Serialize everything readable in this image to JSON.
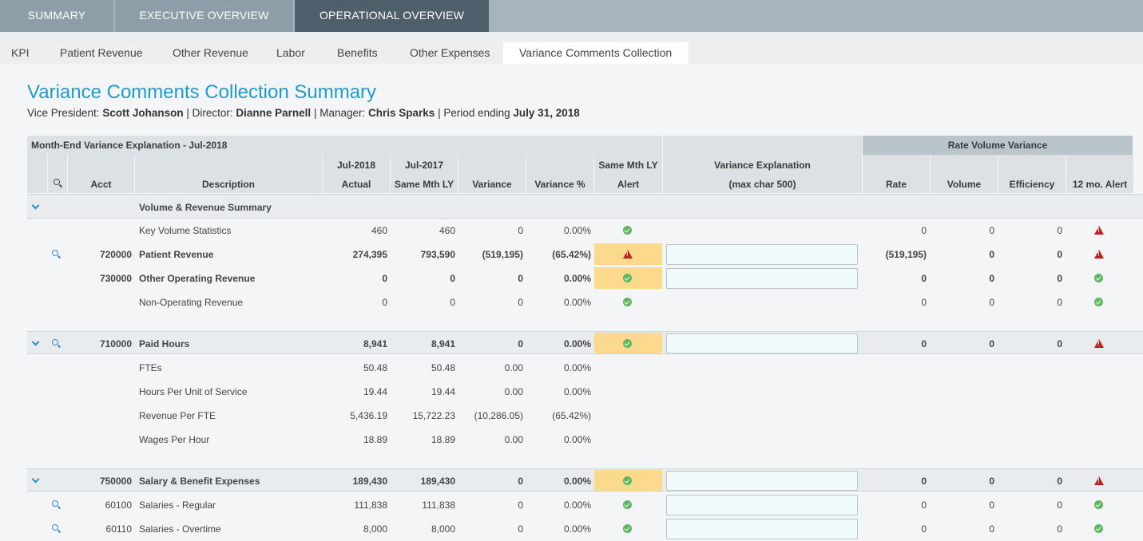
{
  "top_tabs": [
    "SUMMARY",
    "EXECUTIVE OVERVIEW",
    "OPERATIONAL OVERVIEW"
  ],
  "sub_tabs": [
    "KPI",
    "Patient Revenue",
    "Other Revenue",
    "Labor",
    "Benefits",
    "Other Expenses",
    "Variance Comments Collection"
  ],
  "page": {
    "title": "Variance Comments Collection Summary",
    "vp_label": "Vice President:",
    "vp": "Scott Johanson",
    "director_label": "Director:",
    "director": "Dianne Parnell",
    "manager_label": "Manager:",
    "manager": "Chris Sparks",
    "period_label": "Period ending",
    "period": "July 31, 2018"
  },
  "table": {
    "group_header": "Month-End Variance Explanation - Jul-2018",
    "rvv_header": "Rate Volume Variance",
    "columns": {
      "acct": "Acct",
      "description": "Description",
      "actual_l1": "Jul-2018",
      "actual_l2": "Actual",
      "ly_l1": "Jul-2017",
      "ly_l2": "Same Mth LY",
      "variance": "Variance",
      "variance_pct": "Variance %",
      "alert_l1": "Same Mth LY",
      "alert_l2": "Alert",
      "expl_l1": "Variance Explanation",
      "expl_l2": "(max char 500)",
      "rate": "Rate",
      "volume": "Volume",
      "efficiency": "Efficiency",
      "alert12": "12 mo. Alert"
    },
    "rows": [
      {
        "acct": "",
        "desc": "Volume & Revenue Summary",
        "actual": "",
        "ly": "",
        "variance": "",
        "pct": "",
        "alert": "",
        "rate": "",
        "volume": "",
        "eff": "",
        "alert12": ""
      },
      {
        "acct": "",
        "desc": "Key Volume Statistics",
        "actual": "460",
        "ly": "460",
        "variance": "0",
        "pct": "0.00%",
        "alert": "ok",
        "rate": "0",
        "volume": "0",
        "eff": "0",
        "alert12": "warn"
      },
      {
        "acct": "720000",
        "desc": "Patient Revenue",
        "actual": "274,395",
        "ly": "793,590",
        "variance": "(519,195)",
        "pct": "(65.42%)",
        "alert": "warn",
        "rate": "(519,195)",
        "volume": "0",
        "eff": "0",
        "alert12": "warn"
      },
      {
        "acct": "730000",
        "desc": "Other Operating Revenue",
        "actual": "0",
        "ly": "0",
        "variance": "0",
        "pct": "0.00%",
        "alert": "ok",
        "rate": "0",
        "volume": "0",
        "eff": "0",
        "alert12": "ok"
      },
      {
        "acct": "",
        "desc": "Non-Operating Revenue",
        "actual": "0",
        "ly": "0",
        "variance": "0",
        "pct": "0.00%",
        "alert": "ok",
        "rate": "0",
        "volume": "0",
        "eff": "0",
        "alert12": "ok"
      },
      {
        "acct": "710000",
        "desc": "Paid Hours",
        "actual": "8,941",
        "ly": "8,941",
        "variance": "0",
        "pct": "0.00%",
        "alert": "ok",
        "rate": "0",
        "volume": "0",
        "eff": "0",
        "alert12": "warn"
      },
      {
        "acct": "",
        "desc": "FTEs",
        "actual": "50.48",
        "ly": "50.48",
        "variance": "0.00",
        "pct": "0.00%",
        "alert": "",
        "rate": "",
        "volume": "",
        "eff": "",
        "alert12": ""
      },
      {
        "acct": "",
        "desc": "Hours Per Unit of Service",
        "actual": "19.44",
        "ly": "19.44",
        "variance": "0.00",
        "pct": "0.00%",
        "alert": "",
        "rate": "",
        "volume": "",
        "eff": "",
        "alert12": ""
      },
      {
        "acct": "",
        "desc": "Revenue Per FTE",
        "actual": "5,436.19",
        "ly": "15,722.23",
        "variance": "(10,286.05)",
        "pct": "(65.42%)",
        "alert": "",
        "rate": "",
        "volume": "",
        "eff": "",
        "alert12": ""
      },
      {
        "acct": "",
        "desc": "Wages Per Hour",
        "actual": "18.89",
        "ly": "18.89",
        "variance": "0.00",
        "pct": "0.00%",
        "alert": "",
        "rate": "",
        "volume": "",
        "eff": "",
        "alert12": ""
      },
      {
        "acct": "750000",
        "desc": "Salary & Benefit Expenses",
        "actual": "189,430",
        "ly": "189,430",
        "variance": "0",
        "pct": "0.00%",
        "alert": "ok",
        "rate": "0",
        "volume": "0",
        "eff": "0",
        "alert12": "warn"
      },
      {
        "acct": "60100",
        "desc": "Salaries - Regular",
        "actual": "111,838",
        "ly": "111,838",
        "variance": "0",
        "pct": "0.00%",
        "alert": "ok",
        "rate": "0",
        "volume": "0",
        "eff": "0",
        "alert12": "ok"
      },
      {
        "acct": "60110",
        "desc": "Salaries - Overtime",
        "actual": "8,000",
        "ly": "8,000",
        "variance": "0",
        "pct": "0.00%",
        "alert": "ok",
        "rate": "0",
        "volume": "0",
        "eff": "0",
        "alert12": "ok"
      }
    ]
  },
  "colors": {
    "accent": "#1f9ad1",
    "alert_bg": "#fcd98d",
    "ok": "#5cb85c",
    "warn": "#c0211f",
    "active_top_tab": "#4d5f6a"
  },
  "icons": {
    "ok": "check-circle-icon",
    "warn": "warning-triangle-icon",
    "search": "search-icon",
    "expand": "chevron-down-icon"
  }
}
